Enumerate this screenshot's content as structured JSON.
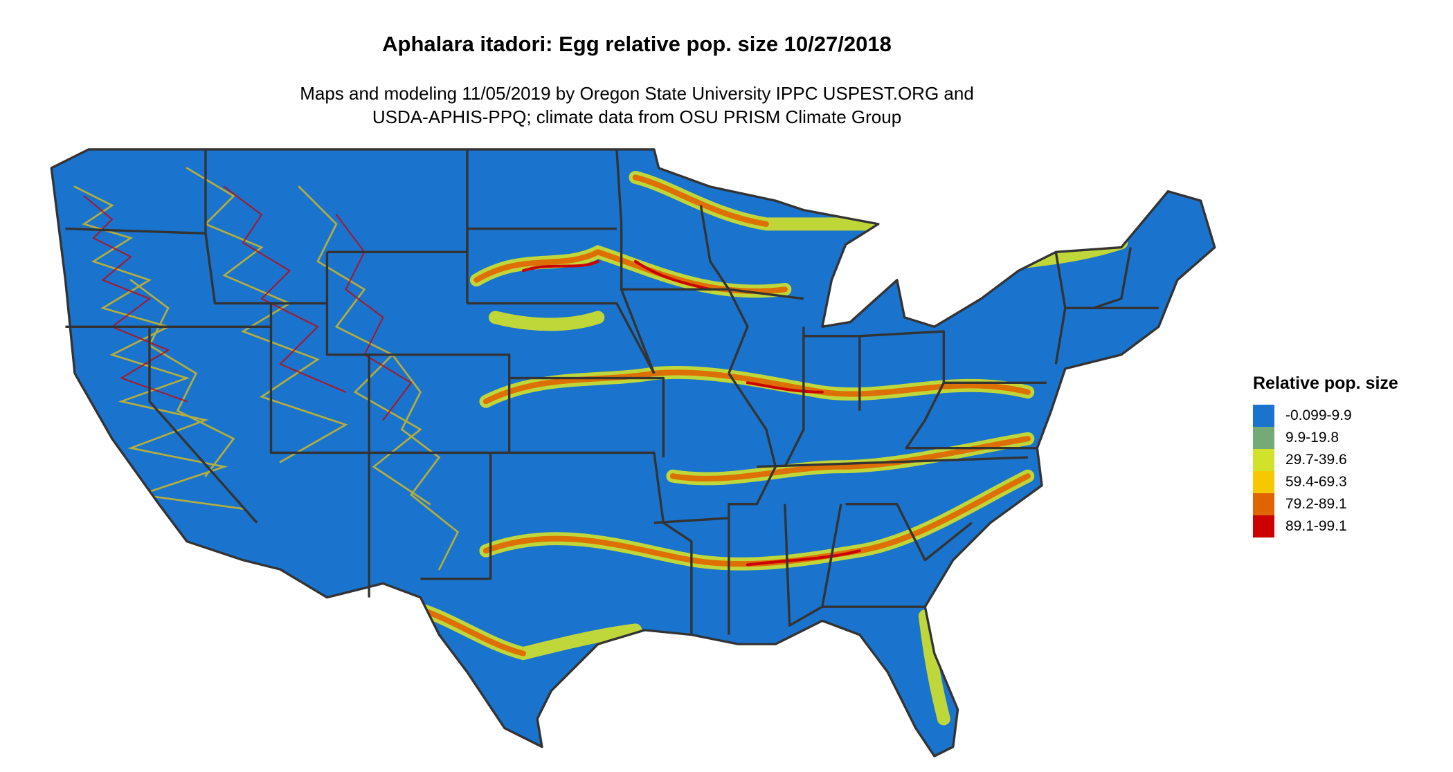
{
  "title": "Aphalara itadori: Egg relative pop. size 10/27/2018",
  "subtitle_line1": "Maps and modeling 11/05/2019 by Oregon State University IPPC USPEST.ORG and",
  "subtitle_line2": "USDA-APHIS-PPQ; climate data from OSU PRISM Climate Group",
  "map": {
    "region": "Contiguous United States",
    "state_borders": true,
    "border_color": "#333333"
  },
  "legend": {
    "title": "Relative pop. size",
    "items": [
      {
        "label": "-0.099-9.9",
        "color": "#1a73cc"
      },
      {
        "label": "9.9-19.8",
        "color": "#73aa78"
      },
      {
        "label": "29.7-39.6",
        "color": "#d2e22a"
      },
      {
        "label": "59.4-69.3",
        "color": "#f5c800"
      },
      {
        "label": "79.2-89.1",
        "color": "#e06400"
      },
      {
        "label": "89.1-99.1",
        "color": "#cc0000"
      }
    ]
  }
}
